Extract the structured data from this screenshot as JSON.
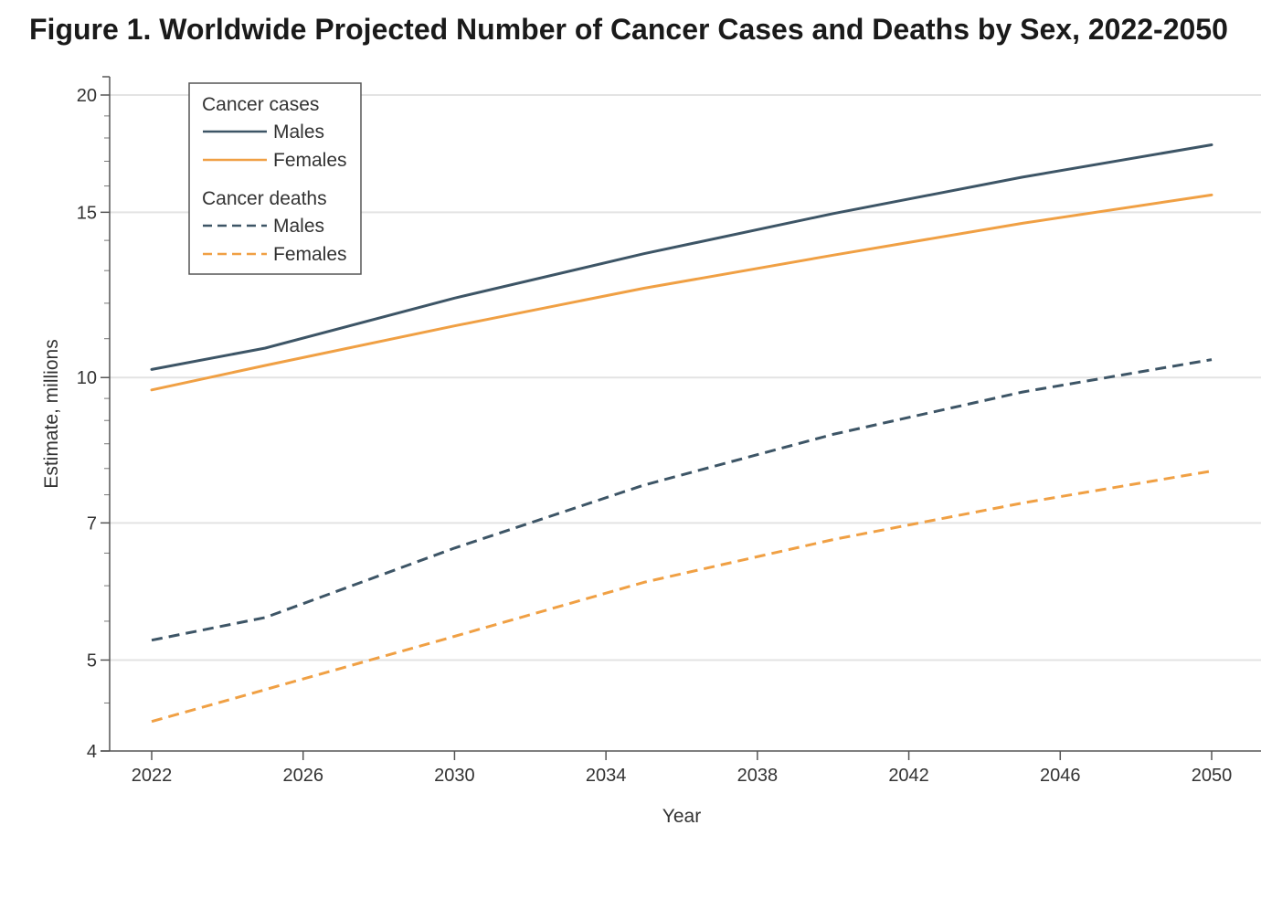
{
  "title": "Figure 1.  Worldwide Projected Number of Cancer Cases and Deaths by Sex, 2022-2050",
  "chart_data": {
    "type": "line",
    "title": "Figure 1.  Worldwide Projected Number of Cancer Cases and Deaths by Sex, 2022-2050",
    "xlabel": "Year",
    "ylabel": "Estimate, millions",
    "yscale": "log",
    "xlim": [
      2021,
      2051
    ],
    "ylim": [
      4,
      20.5
    ],
    "x_ticks": [
      "2022",
      "2026",
      "2030",
      "2034",
      "2038",
      "2042",
      "2046",
      "2050"
    ],
    "y_ticks": [
      "4",
      "5",
      "7",
      "10",
      "15",
      "20"
    ],
    "y_tick_values": [
      4,
      5,
      7,
      10,
      15,
      20
    ],
    "grid": true,
    "legend_position": "top-left",
    "legend_groups": [
      {
        "label": "Cancer cases",
        "entries": [
          0,
          1
        ]
      },
      {
        "label": "Cancer deaths",
        "entries": [
          2,
          3
        ]
      }
    ],
    "series": [
      {
        "name": "Males",
        "group": "Cancer cases",
        "color": "#3d5566",
        "dash": "solid",
        "x": [
          2022,
          2025,
          2030,
          2035,
          2040,
          2045,
          2050
        ],
        "y": [
          10.2,
          10.75,
          12.15,
          13.55,
          14.95,
          16.35,
          17.7
        ]
      },
      {
        "name": "Females",
        "group": "Cancer cases",
        "color": "#f0a044",
        "dash": "solid",
        "x": [
          2022,
          2025,
          2030,
          2035,
          2040,
          2045,
          2050
        ],
        "y": [
          9.7,
          10.3,
          11.35,
          12.45,
          13.5,
          14.6,
          15.65
        ]
      },
      {
        "name": "Males",
        "group": "Cancer deaths",
        "color": "#3d5566",
        "dash": "dashed",
        "x": [
          2022,
          2025,
          2030,
          2035,
          2040,
          2045,
          2050
        ],
        "y": [
          5.25,
          5.55,
          6.58,
          7.68,
          8.7,
          9.65,
          10.45
        ]
      },
      {
        "name": "Females",
        "group": "Cancer deaths",
        "color": "#f0a044",
        "dash": "dashed",
        "x": [
          2022,
          2025,
          2030,
          2035,
          2040,
          2045,
          2050
        ],
        "y": [
          4.3,
          4.65,
          5.3,
          6.05,
          6.72,
          7.35,
          7.95
        ]
      }
    ]
  }
}
